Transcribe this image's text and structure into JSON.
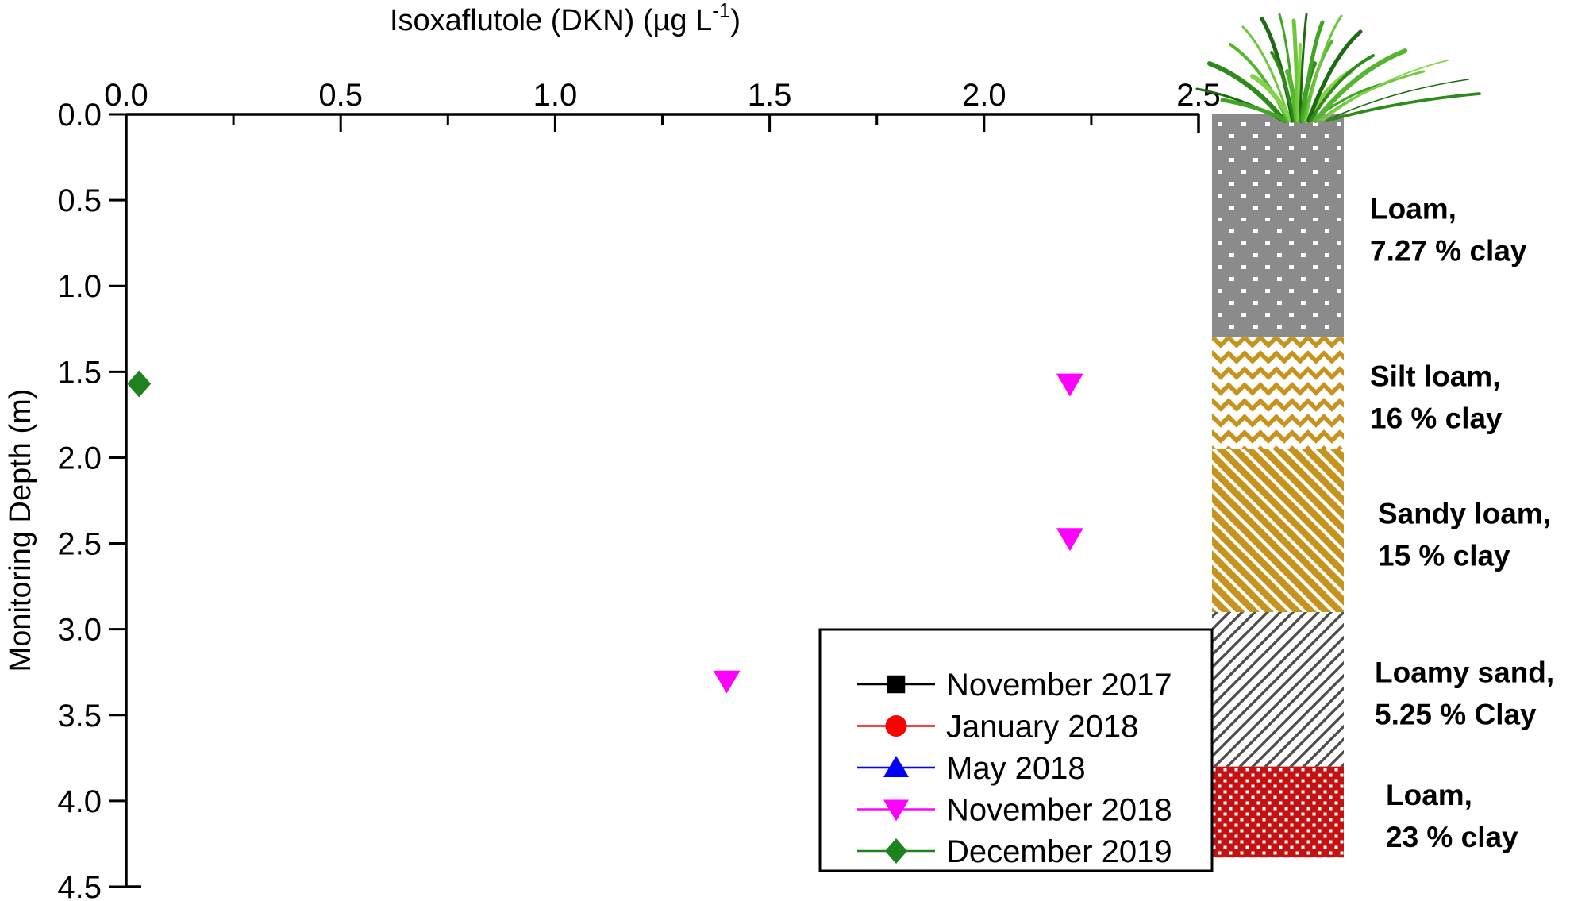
{
  "chart_data": {
    "type": "scatter",
    "xlabel_text": "Isoxaflutole (DKN) (µg L⁻¹)",
    "xlabel_parts": {
      "main": "Isoxaflutole (DKN) (µg L",
      "sup": "-1",
      "close": ")"
    },
    "ylabel": "Monitoring Depth (m)",
    "xlim": [
      0.0,
      2.5
    ],
    "ylim_depth": [
      0.0,
      4.5
    ],
    "axes_style": {
      "x_position": "top",
      "y_inverted": true,
      "grid": false,
      "legend_position": "inside-bottom-right"
    },
    "x_ticks": [
      {
        "value": 0.0,
        "label": "0.0"
      },
      {
        "value": 0.5,
        "label": "0.5"
      },
      {
        "value": 1.0,
        "label": "1.0"
      },
      {
        "value": 1.5,
        "label": "1.5"
      },
      {
        "value": 2.0,
        "label": "2.0"
      },
      {
        "value": 2.5,
        "label": "2.5"
      }
    ],
    "x_minor_ticks": [
      0.25,
      0.75,
      1.25,
      1.75,
      2.25
    ],
    "y_ticks": [
      {
        "value": 0.0,
        "label": "0.0"
      },
      {
        "value": 0.5,
        "label": "0.5"
      },
      {
        "value": 1.0,
        "label": "1.0"
      },
      {
        "value": 1.5,
        "label": "1.5"
      },
      {
        "value": 2.0,
        "label": "2.0"
      },
      {
        "value": 2.5,
        "label": "2.5"
      },
      {
        "value": 3.0,
        "label": "3.0"
      },
      {
        "value": 3.5,
        "label": "3.5"
      },
      {
        "value": 4.0,
        "label": "4.0"
      },
      {
        "value": 4.5,
        "label": "4.5"
      }
    ],
    "series": [
      {
        "name": "November 2017",
        "marker": "square",
        "color": "#000000",
        "points": []
      },
      {
        "name": "January 2018",
        "marker": "circle",
        "color": "#FF0000",
        "points": []
      },
      {
        "name": "May 2018",
        "marker": "triangle-up",
        "color": "#0000FF",
        "points": []
      },
      {
        "name": "November 2018",
        "marker": "triangle-down",
        "color": "#FF00FF",
        "points": [
          {
            "x": 2.2,
            "depth": 1.57
          },
          {
            "x": 2.2,
            "depth": 2.47
          },
          {
            "x": 1.4,
            "depth": 3.3
          }
        ]
      },
      {
        "name": "December 2019",
        "marker": "diamond",
        "color": "#1E8220",
        "points": [
          {
            "x": 0.03,
            "depth": 1.57
          }
        ]
      }
    ],
    "soil_profile": {
      "layers": [
        {
          "line1": "Loam,",
          "line2": "7.27 % clay",
          "depth_top": 0.0,
          "depth_bottom": 1.3,
          "pattern": "gray-dots",
          "color": "#8B8B8B"
        },
        {
          "line1": "Silt loam,",
          "line2": "16 % clay",
          "depth_top": 1.3,
          "depth_bottom": 1.95,
          "pattern": "gold-zigzag",
          "color": "#C6941C"
        },
        {
          "line1": "Sandy loam,",
          "line2": "15 % clay",
          "depth_top": 1.95,
          "depth_bottom": 2.9,
          "pattern": "gold-stripes",
          "color": "#C6941C"
        },
        {
          "line1": "Loamy sand,",
          "line2": "5.25 % Clay",
          "depth_top": 2.9,
          "depth_bottom": 3.8,
          "pattern": "gray-stripes",
          "color": "#4D4D4D"
        },
        {
          "line1": "Loam,",
          "line2": "23 % clay",
          "depth_top": 3.8,
          "depth_bottom": 4.33,
          "pattern": "red-check",
          "color": "#C41212"
        }
      ]
    }
  }
}
